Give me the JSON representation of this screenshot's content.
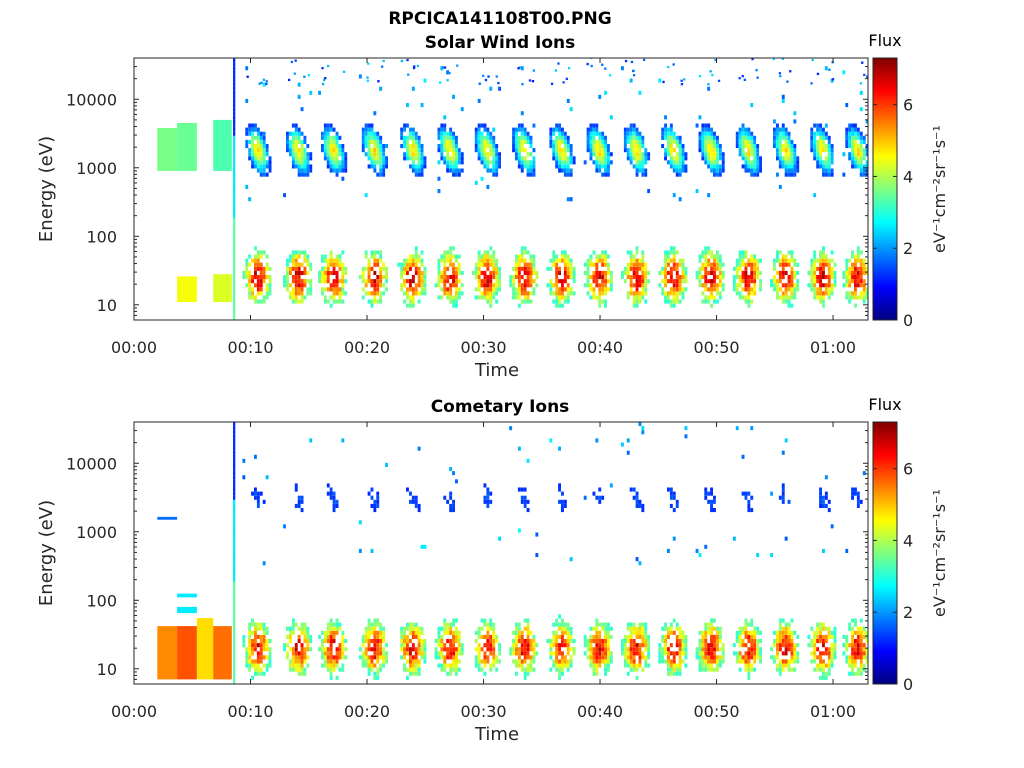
{
  "figure_title": "RPCICA141108T00.PNG",
  "colormap": [
    "#00007f",
    "#0000ff",
    "#007fff",
    "#00ffff",
    "#7fff7f",
    "#ffff00",
    "#ff7f00",
    "#ff0000",
    "#7f0000"
  ],
  "chart_data": [
    {
      "type": "heatmap",
      "title": "Solar Wind Ions",
      "xlabel": "Time",
      "ylabel": "Energy (eV)",
      "x_tick_labels": [
        "00:00",
        "00:10",
        "00:20",
        "00:30",
        "00:40",
        "00:50",
        "01:00"
      ],
      "x_tick_values": [
        0,
        10,
        20,
        30,
        40,
        50,
        60
      ],
      "xlim": [
        0,
        63
      ],
      "y_tick_labels": [
        "10",
        "100",
        "1000",
        "10000"
      ],
      "y_tick_values": [
        10,
        100,
        1000,
        10000
      ],
      "ylim": [
        6,
        40000
      ],
      "yscale": "log",
      "colorbar": {
        "title": "Flux",
        "label": "eV⁻¹cm⁻²sr⁻¹s⁻¹",
        "ticks": [
          0,
          2,
          4,
          6
        ],
        "range": [
          0,
          7.3
        ]
      },
      "features": {
        "vertical_spike_time": 8.5,
        "early_blocks": [
          {
            "t": [
              2,
              3.7
            ],
            "e": [
              900,
              3800
            ],
            "flux": 3.6
          },
          {
            "t": [
              3.7,
              5.4
            ],
            "e": [
              900,
              4500
            ],
            "flux": 3.5
          },
          {
            "t": [
              6.8,
              8.4
            ],
            "e": [
              900,
              5000
            ],
            "flux": 3.3
          }
        ],
        "low_energy_early_blocks": [
          {
            "t": [
              3.7,
              5.4
            ],
            "e": [
              11,
              26
            ],
            "flux": 4.5
          },
          {
            "t": [
              6.8,
              8.4
            ],
            "e": [
              11,
              28
            ],
            "flux": 4.3
          }
        ],
        "burst_times_min": [
          10.5,
          14,
          17,
          20.5,
          23.8,
          27,
          30.2,
          33.4,
          36.6,
          39.8,
          43,
          46.2,
          49.4,
          52.6,
          55.8,
          59,
          62
        ],
        "high_energy_peak_eV": 1800,
        "high_energy_peak_flux": 4.8,
        "low_energy_peak_eV": 25,
        "low_energy_peak_flux": 6.6
      }
    },
    {
      "type": "heatmap",
      "title": "Cometary Ions",
      "xlabel": "Time",
      "ylabel": "Energy (eV)",
      "x_tick_labels": [
        "00:00",
        "00:10",
        "00:20",
        "00:30",
        "00:40",
        "00:50",
        "01:00"
      ],
      "x_tick_values": [
        0,
        10,
        20,
        30,
        40,
        50,
        60
      ],
      "xlim": [
        0,
        63
      ],
      "y_tick_labels": [
        "10",
        "100",
        "1000",
        "10000"
      ],
      "y_tick_values": [
        10,
        100,
        1000,
        10000
      ],
      "ylim": [
        6,
        40000
      ],
      "yscale": "log",
      "colorbar": {
        "title": "Flux",
        "label": "eV⁻¹cm⁻²sr⁻¹s⁻¹",
        "ticks": [
          0,
          2,
          4,
          6
        ],
        "range": [
          0,
          7.3
        ]
      },
      "features": {
        "vertical_spike_time": 8.5,
        "isolated_bars": [
          {
            "t": [
              2,
              3.7
            ],
            "e": [
              1500,
              1650
            ],
            "flux": 1.7
          },
          {
            "t": [
              3.7,
              5.4
            ],
            "e": [
              110,
              125
            ],
            "flux": 2.6
          },
          {
            "t": [
              3.7,
              5.4
            ],
            "e": [
              65,
              80
            ],
            "flux": 2.6
          }
        ],
        "early_blocks": [
          {
            "t": [
              2,
              3.7
            ],
            "e": [
              7,
              42
            ],
            "flux": 5.4
          },
          {
            "t": [
              3.7,
              5.4
            ],
            "e": [
              7,
              42
            ],
            "flux": 5.8
          },
          {
            "t": [
              5.4,
              6.8
            ],
            "e": [
              7,
              55
            ],
            "flux": 4.8
          },
          {
            "t": [
              6.8,
              8.4
            ],
            "e": [
              7,
              42
            ],
            "flux": 5.6
          }
        ],
        "burst_times_min": [
          10.5,
          14,
          17,
          20.5,
          23.8,
          27,
          30.2,
          33.4,
          36.6,
          39.8,
          43,
          46.2,
          49.4,
          52.6,
          55.8,
          59,
          62
        ],
        "high_energy_peak_eV": 3000,
        "high_energy_peak_flux": 1.4,
        "low_energy_peak_eV": 20,
        "low_energy_peak_flux": 6.5
      }
    }
  ]
}
